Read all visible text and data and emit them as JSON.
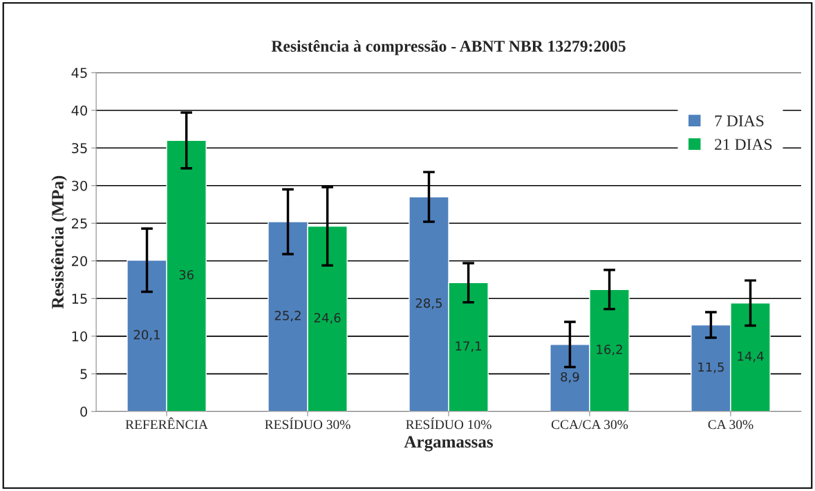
{
  "chart_data": {
    "type": "bar",
    "title": "Resistência à compressão - ABNT NBR 13279:2005",
    "xlabel": "Argamassas",
    "ylabel": "Resistência (MPa)",
    "categories": [
      "REFERÊNCIA",
      "RESÍDUO 30%",
      "RESÍDUO 10%",
      "CCA/CA 30%",
      "CA 30%"
    ],
    "series": [
      {
        "name": "7 DIAS",
        "color": "#4f81bd",
        "values": [
          20.1,
          25.2,
          28.5,
          8.9,
          11.5
        ],
        "errors": [
          4.2,
          4.3,
          3.3,
          3.0,
          1.7
        ],
        "value_labels": [
          "20,1",
          "25,2",
          "28,5",
          "8,9",
          "11,5"
        ]
      },
      {
        "name": "21 DIAS",
        "color": "#00b050",
        "values": [
          36,
          24.6,
          17.1,
          16.2,
          14.4
        ],
        "errors": [
          3.7,
          5.2,
          2.6,
          2.6,
          3.0
        ],
        "value_labels": [
          "36",
          "24,6",
          "17,1",
          "16,2",
          "14,4"
        ]
      }
    ],
    "ylim": [
      0,
      45
    ],
    "yticks": [
      0,
      5,
      10,
      15,
      20,
      25,
      30,
      35,
      40,
      45
    ],
    "grid": "y",
    "legend": "top right"
  }
}
